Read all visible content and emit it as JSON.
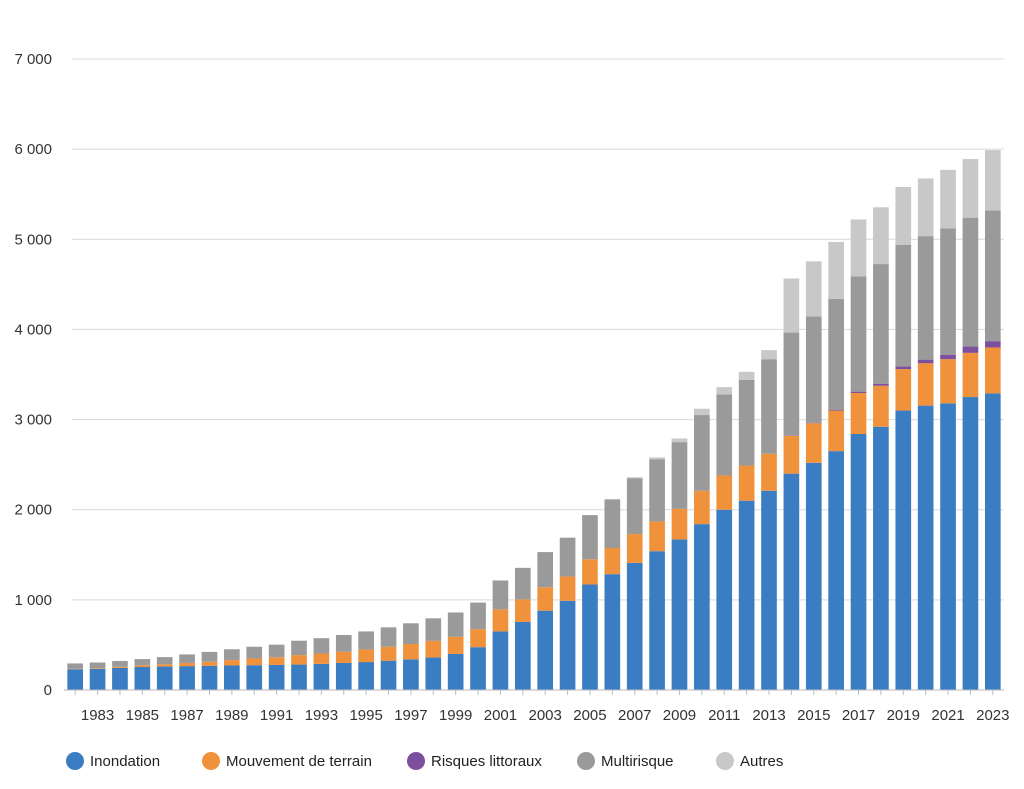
{
  "chart_data": {
    "type": "bar",
    "stacked": true,
    "categories": [
      "1982",
      "1983",
      "1984",
      "1985",
      "1986",
      "1987",
      "1988",
      "1989",
      "1990",
      "1991",
      "1992",
      "1993",
      "1994",
      "1995",
      "1996",
      "1997",
      "1998",
      "1999",
      "2000",
      "2001",
      "2002",
      "2003",
      "2004",
      "2005",
      "2006",
      "2007",
      "2008",
      "2009",
      "2010",
      "2011",
      "2012",
      "2013",
      "2014",
      "2015",
      "2016",
      "2017",
      "2018",
      "2019",
      "2020",
      "2021",
      "2022",
      "2023"
    ],
    "x_tick_labels": [
      "1983",
      "1985",
      "1987",
      "1989",
      "1991",
      "1993",
      "1995",
      "1997",
      "1999",
      "2001",
      "2003",
      "2005",
      "2007",
      "2009",
      "2011",
      "2013",
      "2015",
      "2017",
      "2019",
      "2021",
      "2023"
    ],
    "ylim": [
      0,
      7000
    ],
    "y_ticks": [
      0,
      1000,
      2000,
      3000,
      4000,
      5000,
      6000,
      7000
    ],
    "y_tick_labels": [
      "0",
      "1 000",
      "2 000",
      "3 000",
      "4 000",
      "5 000",
      "6 000",
      "7 000"
    ],
    "grid": true,
    "legend_position": "bottom",
    "series": [
      {
        "name": "Inondation",
        "color": "#3a7dc2",
        "values": [
          230,
          235,
          245,
          255,
          260,
          265,
          268,
          272,
          275,
          278,
          282,
          290,
          300,
          310,
          325,
          340,
          360,
          400,
          475,
          650,
          755,
          880,
          990,
          1170,
          1285,
          1410,
          1540,
          1670,
          1840,
          2000,
          2100,
          2210,
          2400,
          2520,
          2650,
          2840,
          2920,
          3100,
          3155,
          3180,
          3250,
          3290
        ]
      },
      {
        "name": "Mouvement de terrain",
        "color": "#f0923b",
        "values": [
          5,
          8,
          12,
          18,
          25,
          35,
          45,
          60,
          75,
          85,
          105,
          115,
          125,
          140,
          155,
          170,
          185,
          190,
          200,
          245,
          250,
          260,
          270,
          280,
          290,
          320,
          330,
          340,
          370,
          380,
          390,
          410,
          420,
          440,
          450,
          455,
          455,
          460,
          470,
          490,
          490,
          510
        ]
      },
      {
        "name": "Risques littoraux",
        "color": "#7d4f9f",
        "values": [
          0,
          0,
          0,
          0,
          0,
          0,
          0,
          0,
          0,
          0,
          0,
          0,
          0,
          0,
          0,
          0,
          0,
          0,
          0,
          0,
          0,
          0,
          0,
          0,
          0,
          0,
          0,
          0,
          0,
          0,
          0,
          0,
          5,
          5,
          10,
          15,
          20,
          30,
          40,
          50,
          70,
          70
        ]
      },
      {
        "name": "Multirisque",
        "color": "#9a9a9a",
        "values": [
          60,
          62,
          65,
          70,
          80,
          95,
          110,
          120,
          130,
          140,
          160,
          170,
          185,
          200,
          215,
          230,
          250,
          270,
          295,
          320,
          350,
          390,
          430,
          490,
          540,
          620,
          690,
          740,
          840,
          900,
          950,
          1050,
          1140,
          1180,
          1230,
          1280,
          1330,
          1350,
          1370,
          1400,
          1430,
          1450
        ]
      },
      {
        "name": "Autres",
        "color": "#c8c8c8",
        "values": [
          0,
          0,
          0,
          0,
          0,
          0,
          0,
          0,
          0,
          0,
          0,
          0,
          0,
          0,
          0,
          0,
          0,
          0,
          0,
          0,
          0,
          0,
          0,
          0,
          0,
          10,
          20,
          40,
          70,
          80,
          90,
          100,
          600,
          610,
          630,
          630,
          630,
          640,
          640,
          650,
          650,
          670
        ]
      }
    ]
  }
}
